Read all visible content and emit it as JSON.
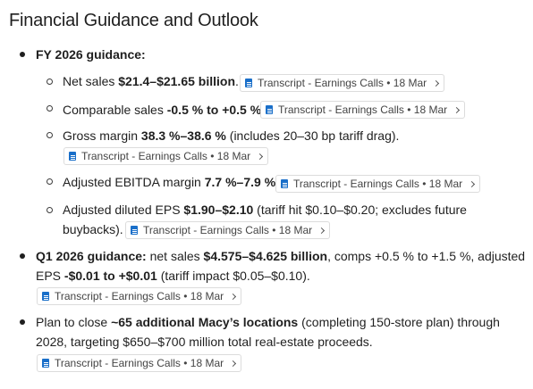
{
  "title": "Financial Guidance and Outlook",
  "source_chip": {
    "label": "Transcript - Earnings Calls • 18 Mar",
    "icon": "document-icon"
  },
  "fy2026": {
    "heading": "FY 2026 guidance:",
    "net_sales": {
      "prefix": "Net sales ",
      "value": "$21.4–$21.65 billion",
      "suffix": "."
    },
    "comparable_sales": {
      "prefix": "Comparable sales ",
      "value": "-0.5 % to +0.5 %",
      "suffix": "."
    },
    "gross_margin": {
      "prefix": "Gross margin ",
      "value": "38.3 %–38.6 %",
      "suffix": " (includes 20–30 bp tariff drag)."
    },
    "adjusted_ebitda": {
      "prefix": "Adjusted EBITDA margin ",
      "value": "7.7 %–7.9 %",
      "suffix": "."
    },
    "adjusted_eps": {
      "prefix": "Adjusted diluted EPS ",
      "value": "$1.90–$2.10",
      "suffix": " (tariff hit $0.10–$0.20; excludes future",
      "line2": "buybacks)."
    }
  },
  "q1": {
    "heading": "Q1 2026 guidance:",
    "text_a": " net sales ",
    "value_sales": "$4.575–$4.625 billion",
    "text_b": ", comps +0.5 % to +1.5 %, adjusted",
    "text_c": "EPS ",
    "value_eps": "-$0.01 to +$0.01",
    "text_d": " (tariff impact $0.05–$0.10)."
  },
  "closures": {
    "text_a": "Plan to close ",
    "value": "~65 additional Macy’s locations",
    "text_b": " (completing 150-store plan) through",
    "line2": "2028, targeting $650–$700 million total real-estate proceeds."
  }
}
